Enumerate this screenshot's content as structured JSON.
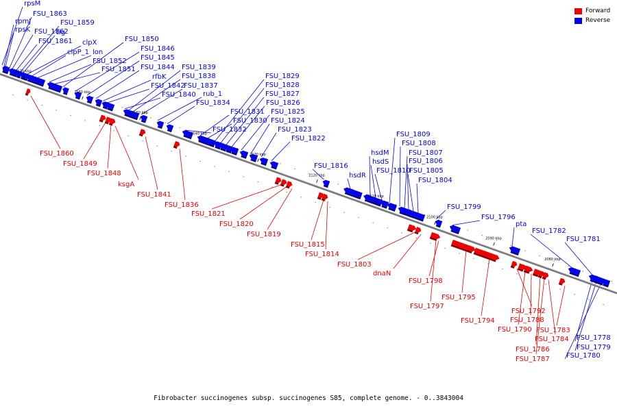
{
  "caption": "Fibrobacter succinogenes subsp. succinogenes S85, complete genome. - 0..3843004",
  "legend": {
    "forward": {
      "label": "Forward",
      "color": "#ee0000"
    },
    "reverse": {
      "label": "Reverse",
      "color": "#0000ee"
    }
  },
  "colors": {
    "forward": "#ee0000",
    "reverse": "#0000ee",
    "backbone": "#777777"
  },
  "ticks": [
    "2170 kbp",
    "2160 kbp",
    "2150 kbp",
    "2140 kbp",
    "2130 kbp",
    "2120 kbp",
    "2110 kbp",
    "2100 kbp",
    "2090 kbp",
    "2080 kbp"
  ],
  "reverse_genes": [
    "rpsM",
    "rpmJ",
    "rpsK",
    "FSU_1863",
    "FSU_1862",
    "FSU_1861",
    "FSU_1859",
    "tig",
    "clpX",
    "clpP_1",
    "lon",
    "FSU_1852",
    "FSU_1851",
    "FSU_1850",
    "FSU_1846",
    "FSU_1845",
    "FSU_1844",
    "rfbK",
    "FSU_1842",
    "FSU_1840",
    "FSU_1839",
    "FSU_1838",
    "FSU_1837",
    "rub_1",
    "FSU_1834",
    "FSU_1832",
    "FSU_1831",
    "FSU_1830",
    "FSU_1829",
    "FSU_1828",
    "FSU_1827",
    "FSU_1826",
    "FSU_1825",
    "FSU_1824",
    "FSU_1823",
    "FSU_1822",
    "FSU_1816",
    "hsdR",
    "hsdM",
    "hsdS",
    "FSU_1810",
    "FSU_1809",
    "FSU_1808",
    "FSU_1807",
    "FSU_1806",
    "FSU_1805",
    "FSU_1804",
    "FSU_1799",
    "FSU_1796",
    "pta",
    "FSU_1782",
    "FSU_1781",
    "FSU_1778",
    "FSU_1779",
    "FSU_1780"
  ],
  "forward_genes": [
    "FSU_1860",
    "FSU_1849",
    "FSU_1848",
    "ksgA",
    "FSU_1841",
    "FSU_1836",
    "FSU_1821",
    "FSU_1820",
    "FSU_1819",
    "FSU_1815",
    "FSU_1814",
    "FSU_1803",
    "dnaN",
    "FSU_1798",
    "FSU_1797",
    "FSU_1795",
    "FSU_1794",
    "FSU_1792",
    "FSU_1790",
    "FSU_1788",
    "FSU_1786",
    "FSU_1787",
    "FSU_1784",
    "FSU_1783"
  ]
}
